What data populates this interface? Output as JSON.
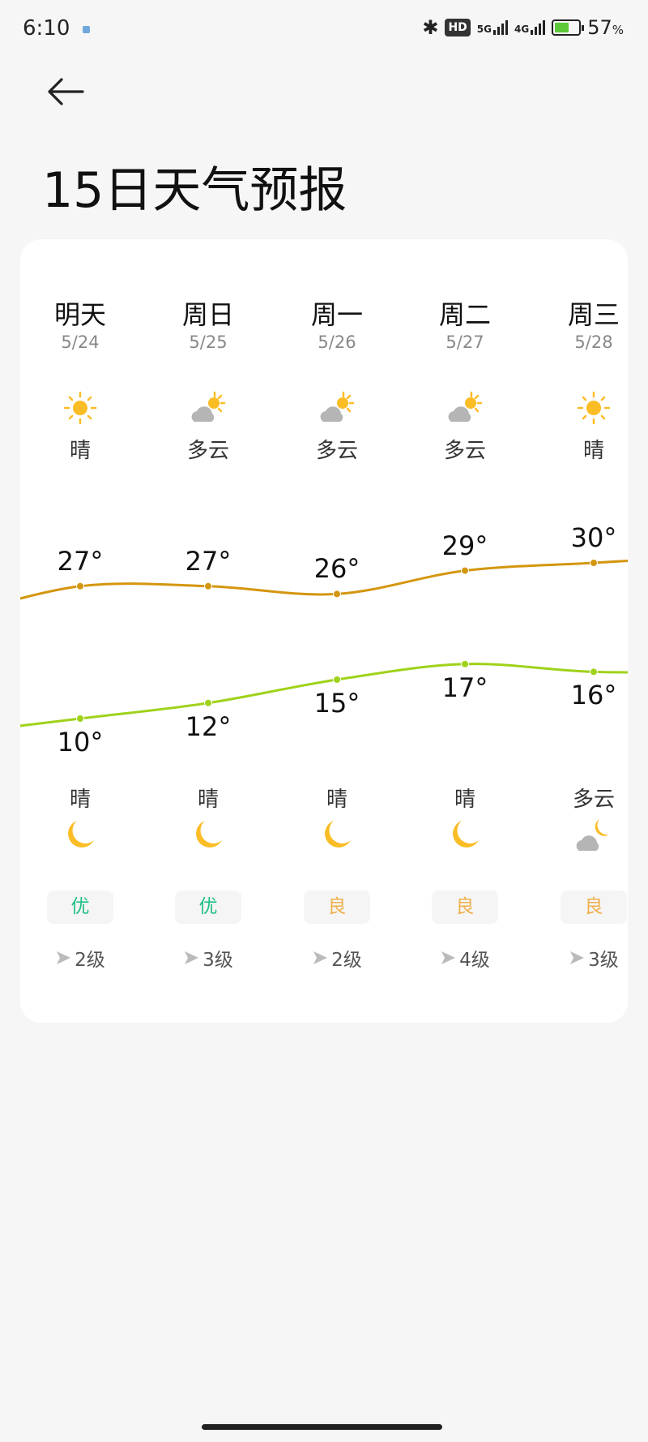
{
  "status_bar": {
    "time": "6:10",
    "network1": "5G",
    "network2": "4G",
    "hd_label": "HD",
    "battery": "57",
    "battery_unit": "%"
  },
  "header": {
    "title": "15日天气预报",
    "back_icon": "arrow-left-icon"
  },
  "colors": {
    "high_line": "#d4960f",
    "low_line": "#9fd21a",
    "aqi_good": "#1fbf83",
    "aqi_moderate": "#f0b04c",
    "icon_sun": "#fbbd26",
    "icon_cloud": "#b5b5b5"
  },
  "days": [
    {
      "name": "明天",
      "date": "5/24",
      "day_icon": "sun-icon",
      "day_cond": "晴",
      "high": 27,
      "high_label": "27°",
      "low": 10,
      "low_label": "10°",
      "night_cond": "晴",
      "night_icon": "moon-icon",
      "aqi": "优",
      "aqi_level": "good",
      "wind": "2级"
    },
    {
      "name": "周日",
      "date": "5/25",
      "day_icon": "partly-cloudy-icon",
      "day_cond": "多云",
      "high": 27,
      "high_label": "27°",
      "low": 12,
      "low_label": "12°",
      "night_cond": "晴",
      "night_icon": "moon-icon",
      "aqi": "优",
      "aqi_level": "good",
      "wind": "3级"
    },
    {
      "name": "周一",
      "date": "5/26",
      "day_icon": "partly-cloudy-icon",
      "day_cond": "多云",
      "high": 26,
      "high_label": "26°",
      "low": 15,
      "low_label": "15°",
      "night_cond": "晴",
      "night_icon": "moon-icon",
      "aqi": "良",
      "aqi_level": "moderate",
      "wind": "2级"
    },
    {
      "name": "周二",
      "date": "5/27",
      "day_icon": "partly-cloudy-icon",
      "day_cond": "多云",
      "high": 29,
      "high_label": "29°",
      "low": 17,
      "low_label": "17°",
      "night_cond": "晴",
      "night_icon": "moon-icon",
      "aqi": "良",
      "aqi_level": "moderate",
      "wind": "4级"
    },
    {
      "name": "周三",
      "date": "5/28",
      "day_icon": "sun-icon",
      "day_cond": "晴",
      "high": 30,
      "high_label": "30°",
      "low": 16,
      "low_label": "16°",
      "night_cond": "多云",
      "night_icon": "cloudy-moon-icon",
      "aqi": "良",
      "aqi_level": "moderate",
      "wind": "3级"
    }
  ]
}
